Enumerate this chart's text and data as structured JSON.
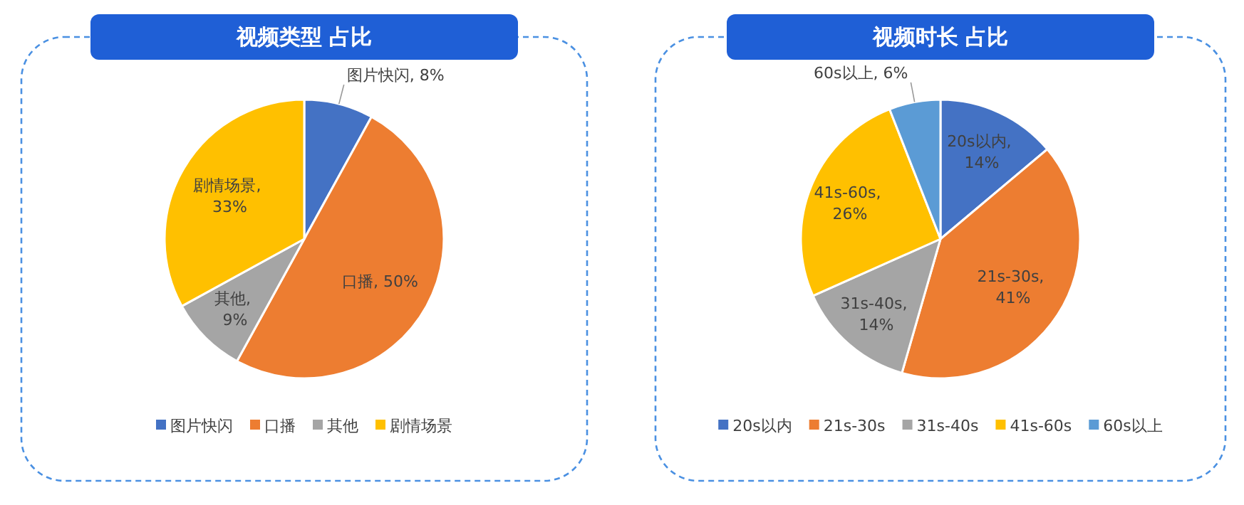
{
  "chart_data": [
    {
      "type": "pie",
      "title": "视频类型 占比",
      "categories": [
        "图片快闪",
        "口播",
        "其他",
        "剧情场景"
      ],
      "values": [
        8,
        50,
        9,
        33
      ],
      "colors": [
        "#4472c4",
        "#ed7d31",
        "#a5a5a5",
        "#ffc000"
      ],
      "value_labels": [
        "图片快闪, 8%",
        "口播, 50%",
        "其他, 9%",
        "剧情场景, 33%"
      ],
      "legend": "bottom"
    },
    {
      "type": "pie",
      "title": "视频时长 占比",
      "categories": [
        "20s以内",
        "21s-30s",
        "31s-40s",
        "41s-60s",
        "60s以上"
      ],
      "values": [
        14,
        41,
        14,
        26,
        6
      ],
      "colors": [
        "#4472c4",
        "#ed7d31",
        "#a5a5a5",
        "#ffc000",
        "#5b9bd5"
      ],
      "value_labels": [
        "20s以内, 14%",
        "21s-30s, 41%",
        "31s-40s, 14%",
        "41s-60s, 26%",
        "60s以上, 6%"
      ],
      "legend": "bottom"
    }
  ]
}
